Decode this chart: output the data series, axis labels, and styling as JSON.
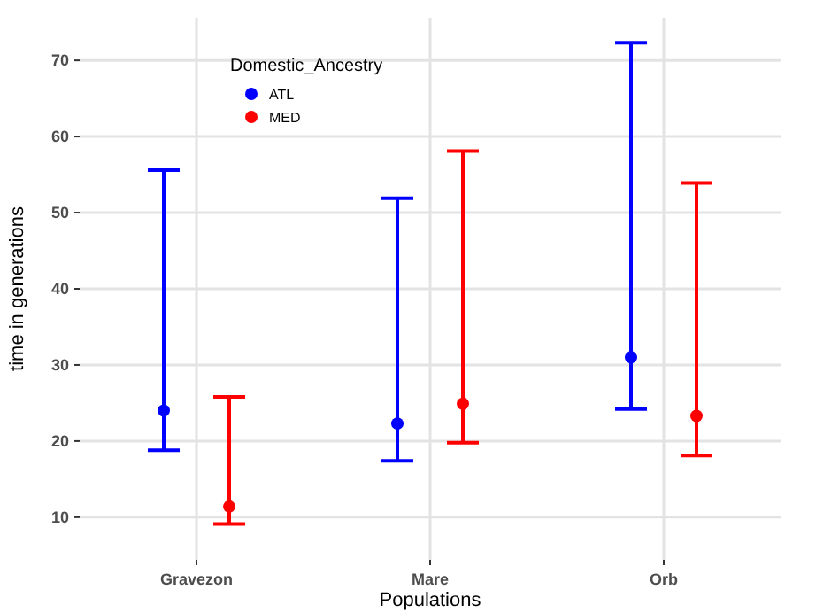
{
  "chart_data": {
    "type": "scatter",
    "xlabel": "Populations",
    "ylabel": "time in generations",
    "legend_title": "Domestic_Ancestry",
    "categories": [
      "Gravezon",
      "Mare",
      "Orb"
    ],
    "series": [
      {
        "name": "ATL",
        "color": "#0000ff",
        "values": [
          24,
          22.3,
          31
        ],
        "errors": [
          [
            18.8,
            55.6
          ],
          [
            17.4,
            51.9
          ],
          [
            24.2,
            72.3
          ]
        ]
      },
      {
        "name": "MED",
        "color": "#ff0000",
        "values": [
          11.4,
          24.9,
          23.3
        ],
        "errors": [
          [
            9.1,
            25.8
          ],
          [
            19.8,
            58.1
          ],
          [
            18.1,
            53.9
          ]
        ]
      }
    ],
    "ylim": [
      4.4,
      75.6
    ],
    "yticks": [
      10,
      20,
      30,
      40,
      50,
      60,
      70
    ],
    "grid": true,
    "legend": "top left",
    "marker": "circle"
  }
}
